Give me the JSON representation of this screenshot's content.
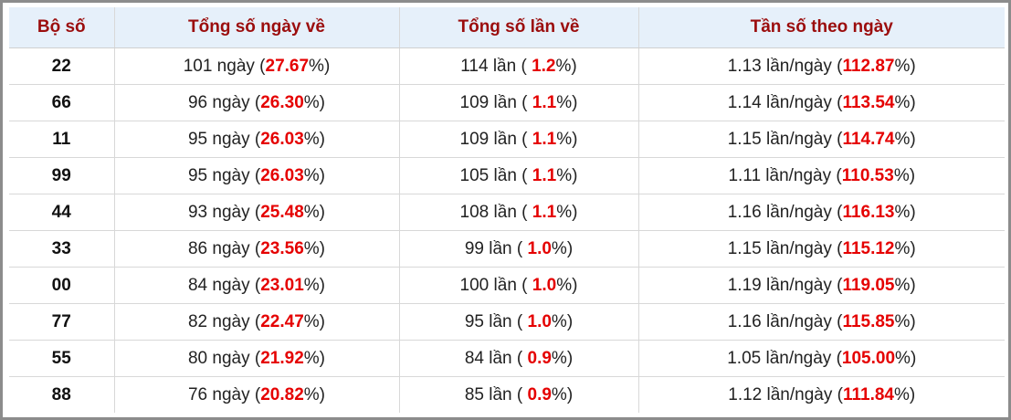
{
  "table": {
    "header": [
      "Bộ số",
      "Tổng số ngày về",
      "Tổng số lần về",
      "Tần số theo ngày"
    ],
    "rows": [
      [
        "22",
        [
          "101 ngày (",
          "27.67",
          "%)"
        ],
        [
          "114 lần ( ",
          "1.2",
          "%)"
        ],
        [
          "1.13 lần/ngày (",
          "112.87",
          "%)"
        ]
      ],
      [
        "66",
        [
          "96 ngày (",
          "26.30",
          "%)"
        ],
        [
          "109 lần ( ",
          "1.1",
          "%)"
        ],
        [
          "1.14 lần/ngày (",
          "113.54",
          "%)"
        ]
      ],
      [
        "11",
        [
          "95 ngày (",
          "26.03",
          "%)"
        ],
        [
          "109 lần ( ",
          "1.1",
          "%)"
        ],
        [
          "1.15 lần/ngày (",
          "114.74",
          "%)"
        ]
      ],
      [
        "99",
        [
          "95 ngày (",
          "26.03",
          "%)"
        ],
        [
          "105 lần ( ",
          "1.1",
          "%)"
        ],
        [
          "1.11 lần/ngày (",
          "110.53",
          "%)"
        ]
      ],
      [
        "44",
        [
          "93 ngày (",
          "25.48",
          "%)"
        ],
        [
          "108 lần ( ",
          "1.1",
          "%)"
        ],
        [
          "1.16 lần/ngày (",
          "116.13",
          "%)"
        ]
      ],
      [
        "33",
        [
          "86 ngày (",
          "23.56",
          "%)"
        ],
        [
          "99 lần ( ",
          "1.0",
          "%)"
        ],
        [
          "1.15 lần/ngày (",
          "115.12",
          "%)"
        ]
      ],
      [
        "00",
        [
          "84 ngày (",
          "23.01",
          "%)"
        ],
        [
          "100 lần ( ",
          "1.0",
          "%)"
        ],
        [
          "1.19 lần/ngày (",
          "119.05",
          "%)"
        ]
      ],
      [
        "77",
        [
          "82 ngày (",
          "22.47",
          "%)"
        ],
        [
          "95 lần ( ",
          "1.0",
          "%)"
        ],
        [
          "1.16 lần/ngày (",
          "115.85",
          "%)"
        ]
      ],
      [
        "55",
        [
          "80 ngày (",
          "21.92",
          "%)"
        ],
        [
          "84 lần ( ",
          "0.9",
          "%)"
        ],
        [
          "1.05 lần/ngày (",
          "105.00",
          "%)"
        ]
      ],
      [
        "88",
        [
          "76 ngày (",
          "20.82",
          "%)"
        ],
        [
          "85 lần ( ",
          "0.9",
          "%)"
        ],
        [
          "1.12 lần/ngày (",
          "111.84",
          "%)"
        ]
      ]
    ]
  }
}
